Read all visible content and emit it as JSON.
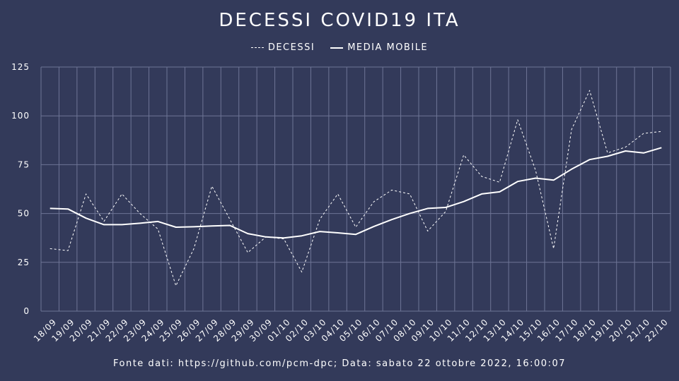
{
  "chart_data": {
    "type": "line",
    "title": "DECESSI COVID19 ITA",
    "legend_position": "top-center",
    "grid": true,
    "ylim": [
      0,
      125
    ],
    "yticks": [
      0,
      25,
      50,
      75,
      100,
      125
    ],
    "categories": [
      "18/09",
      "19/09",
      "20/09",
      "21/09",
      "22/09",
      "23/09",
      "24/09",
      "25/09",
      "26/09",
      "27/09",
      "28/09",
      "29/09",
      "30/09",
      "01/10",
      "02/10",
      "03/10",
      "04/10",
      "05/10",
      "06/10",
      "07/10",
      "08/10",
      "09/10",
      "10/10",
      "11/10",
      "12/10",
      "13/10",
      "14/10",
      "15/10",
      "16/10",
      "17/10",
      "18/10",
      "19/10",
      "20/10",
      "21/10",
      "22/10"
    ],
    "series": [
      {
        "name": "DECESSI",
        "style": "dashed",
        "values": [
          32,
          31,
          60,
          46,
          60,
          50,
          42,
          13,
          32,
          64,
          47,
          30,
          38,
          37,
          20,
          47,
          60,
          43,
          56,
          62,
          60,
          41,
          51,
          80,
          69,
          66,
          98,
          72,
          32,
          93,
          113,
          81,
          84,
          91,
          92
        ]
      },
      {
        "name": "MEDIA MOBILE",
        "style": "solid",
        "values": [
          52.6,
          52.3,
          47.6,
          44.3,
          44.3,
          45.0,
          45.9,
          43.0,
          43.2,
          43.6,
          43.9,
          39.7,
          38.0,
          37.5,
          38.6,
          40.8,
          40.1,
          39.3,
          43.3,
          46.9,
          50.0,
          52.6,
          53.1,
          56.1,
          60.0,
          61.1,
          66.4,
          68.1,
          67.1,
          72.7,
          77.6,
          79.3,
          82.0,
          81.0,
          83.7
        ]
      }
    ],
    "colors": {
      "background": "#333a5a",
      "grid": "#6e7596",
      "line": "#ffffff"
    }
  },
  "footer": {
    "source": "Fonte dati: https://github.com/pcm-dpc; Data: sabato 22 ottobre 2022, 16:00:07"
  }
}
